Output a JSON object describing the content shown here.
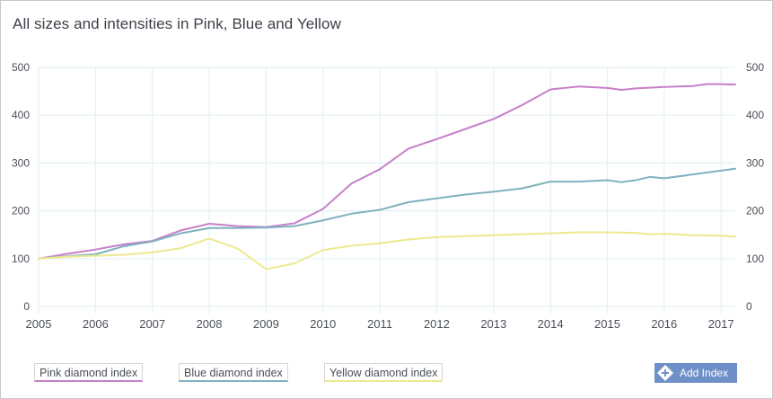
{
  "page": {
    "title": "All sizes and intensities in Pink, Blue and Yellow"
  },
  "chart_data": {
    "type": "line",
    "title": "All sizes and intensities in Pink, Blue and Yellow",
    "xlabel": "",
    "ylabel": "",
    "xlim": [
      2005,
      2017.25
    ],
    "ylim": [
      0,
      500
    ],
    "y_ticks": [
      0,
      100,
      200,
      300,
      400,
      500
    ],
    "x_ticks": [
      "2005",
      "2006",
      "2007",
      "2008",
      "2009",
      "2010",
      "2011",
      "2012",
      "2013",
      "2014",
      "2015",
      "2016",
      "2017"
    ],
    "grid": true,
    "legend_position": "bottom-left",
    "series": [
      {
        "name": "Pink diamond index",
        "color": "#c77fc9",
        "points": [
          [
            2005,
            100
          ],
          [
            2005.5,
            110
          ],
          [
            2006,
            119
          ],
          [
            2006.5,
            130
          ],
          [
            2007,
            137
          ],
          [
            2007.5,
            159
          ],
          [
            2008,
            173
          ],
          [
            2008.5,
            168
          ],
          [
            2009,
            166
          ],
          [
            2009.5,
            174
          ],
          [
            2010,
            204
          ],
          [
            2010.5,
            257
          ],
          [
            2011,
            287
          ],
          [
            2011.5,
            330
          ],
          [
            2012,
            350
          ],
          [
            2012.5,
            371
          ],
          [
            2013,
            392
          ],
          [
            2013.5,
            421
          ],
          [
            2014,
            454
          ],
          [
            2014.5,
            460
          ],
          [
            2015,
            457
          ],
          [
            2015.25,
            453
          ],
          [
            2015.5,
            456
          ],
          [
            2016,
            459
          ],
          [
            2016.5,
            461
          ],
          [
            2016.75,
            465
          ],
          [
            2017,
            465
          ],
          [
            2017.25,
            464
          ]
        ]
      },
      {
        "name": "Blue diamond index",
        "color": "#7fb2bf",
        "points": [
          [
            2005,
            100
          ],
          [
            2005.5,
            105
          ],
          [
            2006,
            109
          ],
          [
            2006.5,
            126
          ],
          [
            2007,
            136
          ],
          [
            2007.5,
            153
          ],
          [
            2008,
            164
          ],
          [
            2008.5,
            164
          ],
          [
            2009,
            165
          ],
          [
            2009.5,
            168
          ],
          [
            2010,
            180
          ],
          [
            2010.5,
            194
          ],
          [
            2011,
            202
          ],
          [
            2011.5,
            218
          ],
          [
            2012,
            226
          ],
          [
            2012.5,
            234
          ],
          [
            2013,
            240
          ],
          [
            2013.5,
            247
          ],
          [
            2014,
            261
          ],
          [
            2014.5,
            261
          ],
          [
            2015,
            264
          ],
          [
            2015.25,
            260
          ],
          [
            2015.5,
            264
          ],
          [
            2015.75,
            271
          ],
          [
            2016,
            268
          ],
          [
            2016.5,
            276
          ],
          [
            2017,
            284
          ],
          [
            2017.25,
            288
          ]
        ]
      },
      {
        "name": "Yellow diamond index",
        "color": "#ede98f",
        "points": [
          [
            2005,
            100
          ],
          [
            2005.5,
            104
          ],
          [
            2006,
            106
          ],
          [
            2006.5,
            108
          ],
          [
            2007,
            113
          ],
          [
            2007.5,
            122
          ],
          [
            2008,
            142
          ],
          [
            2008.5,
            121
          ],
          [
            2009,
            78
          ],
          [
            2009.5,
            90
          ],
          [
            2010,
            118
          ],
          [
            2010.5,
            127
          ],
          [
            2011,
            132
          ],
          [
            2011.5,
            140
          ],
          [
            2012,
            145
          ],
          [
            2012.5,
            147
          ],
          [
            2013,
            149
          ],
          [
            2013.5,
            151
          ],
          [
            2014,
            153
          ],
          [
            2014.5,
            155
          ],
          [
            2015,
            155
          ],
          [
            2015.5,
            154
          ],
          [
            2015.75,
            151
          ],
          [
            2016,
            152
          ],
          [
            2016.5,
            149
          ],
          [
            2017,
            148
          ],
          [
            2017.25,
            146
          ]
        ]
      }
    ]
  },
  "legend": {
    "items": [
      "Pink diamond index",
      "Blue diamond index",
      "Yellow diamond index"
    ]
  },
  "add_button": {
    "label": "Add Index"
  },
  "colors": {
    "grid": "#e4f1f3",
    "pink": "#c77fc9",
    "blue": "#7fb2bf",
    "yellow": "#ede98f",
    "button": "#6f8fc8"
  }
}
